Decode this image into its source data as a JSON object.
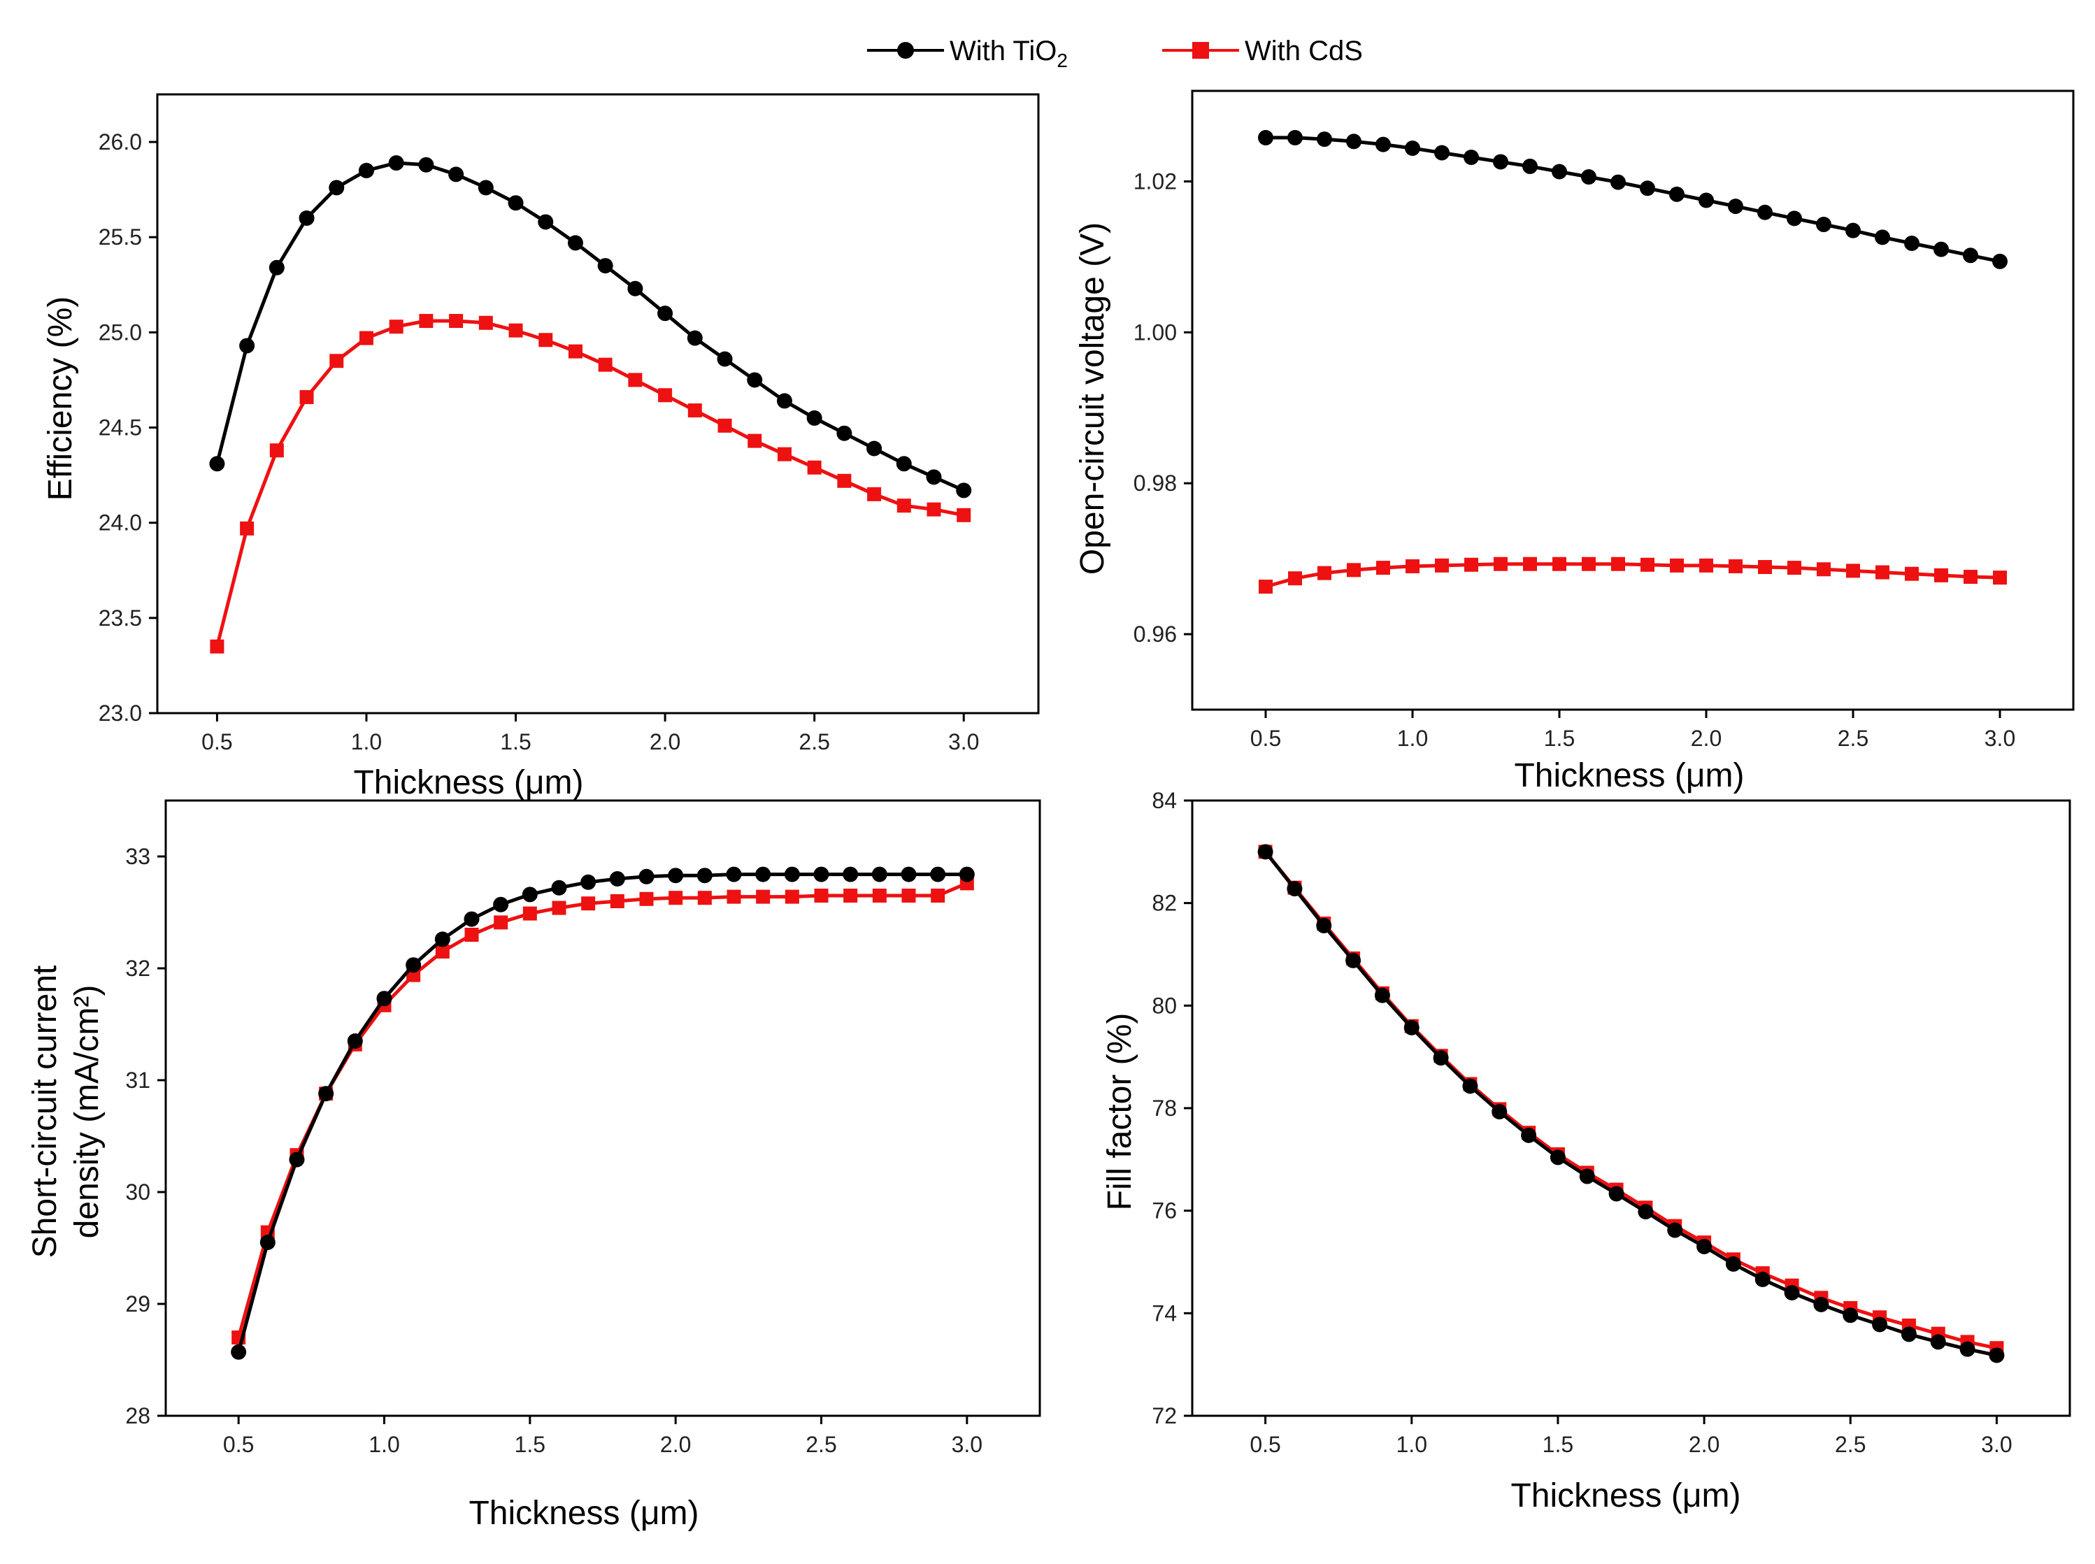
{
  "colors": {
    "tio2": "#000000",
    "cds": "#ee1111"
  },
  "legend": {
    "tio2_prefix": "With TiO",
    "tio2_sub": "2",
    "cds": "With CdS"
  },
  "chart_data": [
    {
      "type": "line",
      "xlabel": "Thickness  (μm)",
      "ylabel": "Efficiency (%)",
      "xlim": [
        0.3,
        3.25
      ],
      "ylim": [
        23.0,
        26.25
      ],
      "xticks": [
        0.5,
        1.0,
        1.5,
        2.0,
        2.5,
        3.0
      ],
      "xtick_labels": [
        "0.5",
        "1.0",
        "1.5",
        "2.0",
        "2.5",
        "3.0"
      ],
      "yticks": [
        23.0,
        23.5,
        24.0,
        24.5,
        25.0,
        25.5,
        26.0
      ],
      "ytick_labels": [
        "23.0",
        "23.5",
        "24.0",
        "24.5",
        "25.0",
        "25.5",
        "26.0"
      ],
      "x": [
        0.5,
        0.6,
        0.7,
        0.8,
        0.9,
        1.0,
        1.1,
        1.2,
        1.3,
        1.4,
        1.5,
        1.6,
        1.7,
        1.8,
        1.9,
        2.0,
        2.1,
        2.2,
        2.3,
        2.4,
        2.5,
        2.6,
        2.7,
        2.8,
        2.9,
        3.0
      ],
      "series": [
        {
          "name": "With TiO2",
          "marker": "circle",
          "values": [
            24.31,
            24.93,
            25.34,
            25.6,
            25.76,
            25.85,
            25.89,
            25.88,
            25.83,
            25.76,
            25.68,
            25.58,
            25.47,
            25.35,
            25.23,
            25.1,
            24.97,
            24.86,
            24.75,
            24.64,
            24.55,
            24.47,
            24.39,
            24.31,
            24.24,
            24.17
          ]
        },
        {
          "name": "With CdS",
          "marker": "square",
          "values": [
            23.35,
            23.97,
            24.38,
            24.66,
            24.85,
            24.97,
            25.03,
            25.06,
            25.06,
            25.05,
            25.01,
            24.96,
            24.9,
            24.83,
            24.75,
            24.67,
            24.59,
            24.51,
            24.43,
            24.36,
            24.29,
            24.22,
            24.15,
            24.09,
            24.07,
            24.04
          ]
        }
      ]
    },
    {
      "type": "line",
      "xlabel": "Thickness  (μm)",
      "ylabel": "Open-circuit voltage (V)",
      "xlim": [
        0.25,
        3.25
      ],
      "ylim": [
        0.95,
        1.032
      ],
      "xticks": [
        0.5,
        1.0,
        1.5,
        2.0,
        2.5,
        3.0
      ],
      "xtick_labels": [
        "0.5",
        "1.0",
        "1.5",
        "2.0",
        "2.5",
        "3.0"
      ],
      "yticks": [
        0.96,
        0.98,
        1.0,
        1.02
      ],
      "ytick_labels": [
        "0.96",
        "0.98",
        "1.00",
        "1.02"
      ],
      "x": [
        0.5,
        0.6,
        0.7,
        0.8,
        0.9,
        1.0,
        1.1,
        1.2,
        1.3,
        1.4,
        1.5,
        1.6,
        1.7,
        1.8,
        1.9,
        2.0,
        2.1,
        2.2,
        2.3,
        2.4,
        2.5,
        2.6,
        2.7,
        2.8,
        2.9,
        3.0
      ],
      "series": [
        {
          "name": "With TiO2",
          "marker": "circle",
          "values": [
            1.0258,
            1.0258,
            1.0256,
            1.0253,
            1.0249,
            1.0244,
            1.0238,
            1.0232,
            1.0226,
            1.022,
            1.0213,
            1.0206,
            1.0199,
            1.0191,
            1.0183,
            1.0175,
            1.0167,
            1.0159,
            1.0151,
            1.0143,
            1.0135,
            1.0126,
            1.0118,
            1.011,
            1.0102,
            1.0094
          ]
        },
        {
          "name": "With CdS",
          "marker": "square",
          "values": [
            0.9663,
            0.9674,
            0.9681,
            0.9685,
            0.9688,
            0.969,
            0.9691,
            0.9692,
            0.9693,
            0.9693,
            0.9693,
            0.9693,
            0.9693,
            0.9692,
            0.9691,
            0.9691,
            0.969,
            0.9689,
            0.9688,
            0.9686,
            0.9684,
            0.9682,
            0.968,
            0.9678,
            0.9676,
            0.9675
          ]
        }
      ]
    },
    {
      "type": "line",
      "xlabel": "Thickness  (μm)",
      "ylabel_line1": "Short-circuit current",
      "ylabel_line2": "density (mA/cm²)",
      "xlim": [
        0.25,
        3.25
      ],
      "ylim": [
        28.0,
        33.5
      ],
      "xticks": [
        0.5,
        1.0,
        1.5,
        2.0,
        2.5,
        3.0
      ],
      "xtick_labels": [
        "0.5",
        "1.0",
        "1.5",
        "2.0",
        "2.5",
        "3.0"
      ],
      "yticks": [
        28,
        29,
        30,
        31,
        32,
        33
      ],
      "ytick_labels": [
        "28",
        "29",
        "30",
        "31",
        "32",
        "33"
      ],
      "x": [
        0.5,
        0.6,
        0.7,
        0.8,
        0.9,
        1.0,
        1.1,
        1.2,
        1.3,
        1.4,
        1.5,
        1.6,
        1.7,
        1.8,
        1.9,
        2.0,
        2.1,
        2.2,
        2.3,
        2.4,
        2.5,
        2.6,
        2.7,
        2.8,
        2.9,
        3.0
      ],
      "series": [
        {
          "name": "With TiO2",
          "marker": "circle",
          "values": [
            28.57,
            29.55,
            30.29,
            30.88,
            31.35,
            31.73,
            32.03,
            32.26,
            32.44,
            32.57,
            32.66,
            32.72,
            32.77,
            32.8,
            32.82,
            32.83,
            32.83,
            32.84,
            32.84,
            32.84,
            32.84,
            32.84,
            32.84,
            32.84,
            32.84,
            32.84
          ]
        },
        {
          "name": "With CdS",
          "marker": "square",
          "values": [
            28.7,
            29.64,
            30.33,
            30.88,
            31.32,
            31.67,
            31.94,
            32.15,
            32.3,
            32.41,
            32.49,
            32.54,
            32.58,
            32.6,
            32.62,
            32.63,
            32.63,
            32.64,
            32.64,
            32.64,
            32.65,
            32.65,
            32.65,
            32.65,
            32.65,
            32.76
          ]
        }
      ]
    },
    {
      "type": "line",
      "xlabel": "Thickness  (μm)",
      "ylabel": "Fill factor (%)",
      "xlim": [
        0.25,
        3.25
      ],
      "ylim": [
        72,
        84
      ],
      "xticks": [
        0.5,
        1.0,
        1.5,
        2.0,
        2.5,
        3.0
      ],
      "xtick_labels": [
        "0.5",
        "1.0",
        "1.5",
        "2.0",
        "2.5",
        "3.0"
      ],
      "yticks": [
        72,
        74,
        76,
        78,
        80,
        82,
        84
      ],
      "ytick_labels": [
        "72",
        "74",
        "76",
        "78",
        "80",
        "82",
        "84"
      ],
      "x": [
        0.5,
        0.6,
        0.7,
        0.8,
        0.9,
        1.0,
        1.1,
        1.2,
        1.3,
        1.4,
        1.5,
        1.6,
        1.7,
        1.8,
        1.9,
        2.0,
        2.1,
        2.2,
        2.3,
        2.4,
        2.5,
        2.6,
        2.7,
        2.8,
        2.9,
        3.0
      ],
      "series": [
        {
          "name": "With TiO2",
          "marker": "circle",
          "values": [
            83.0,
            82.28,
            81.56,
            80.88,
            80.2,
            79.57,
            78.98,
            78.43,
            77.93,
            77.47,
            77.04,
            76.67,
            76.33,
            75.98,
            75.62,
            75.3,
            74.96,
            74.66,
            74.4,
            74.17,
            73.96,
            73.78,
            73.59,
            73.44,
            73.3,
            73.18
          ]
        },
        {
          "name": "With CdS",
          "marker": "square",
          "values": [
            83.0,
            82.3,
            81.6,
            80.92,
            80.24,
            79.6,
            79.02,
            78.47,
            77.98,
            77.52,
            77.1,
            76.74,
            76.41,
            76.06,
            75.7,
            75.38,
            75.05,
            74.78,
            74.54,
            74.3,
            74.1,
            73.92,
            73.76,
            73.6,
            73.44,
            73.32
          ]
        }
      ]
    }
  ]
}
